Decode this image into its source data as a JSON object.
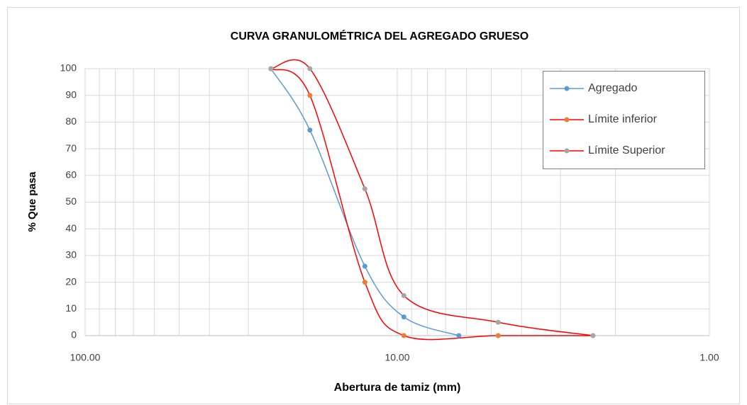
{
  "chart_data": {
    "type": "line",
    "title": "CURVA GRANULOMÉTRICA  DEL AGREGADO  GRUESO",
    "x_label": "Abertura de tamiz (mm)",
    "y_label": "% Que pasa",
    "log_x": true,
    "xlim": [
      100,
      1
    ],
    "xticks": [
      {
        "value": 100,
        "label": "100.00"
      },
      {
        "value": 10,
        "label": "10.00"
      },
      {
        "value": 1,
        "label": "1.00"
      }
    ],
    "ylim": [
      0,
      100
    ],
    "yticks": [
      0,
      10,
      20,
      30,
      40,
      50,
      60,
      70,
      80,
      90,
      100
    ],
    "grid": true,
    "smooth": true,
    "legend": "upper right",
    "series": [
      {
        "name": "Agregado",
        "color": "#5b9bd5",
        "marker_color": "#5b9bd5",
        "x": [
          25.4,
          19.05,
          12.7,
          9.525,
          6.35
        ],
        "values": [
          100,
          77,
          26,
          7,
          0
        ]
      },
      {
        "name": "Límite inferior",
        "color": "#ff0000",
        "marker_color": "#ed7d31",
        "x": [
          25.4,
          19.05,
          12.7,
          9.525,
          4.75,
          2.36
        ],
        "values": [
          100,
          90,
          20,
          0,
          0,
          0
        ]
      },
      {
        "name": "Límite Superior",
        "color": "#ff0000",
        "marker_color": "#a5a5a5",
        "x": [
          25.4,
          19.05,
          12.7,
          9.525,
          4.75,
          2.36
        ],
        "values": [
          100,
          100,
          55,
          15,
          5,
          0
        ]
      }
    ]
  }
}
